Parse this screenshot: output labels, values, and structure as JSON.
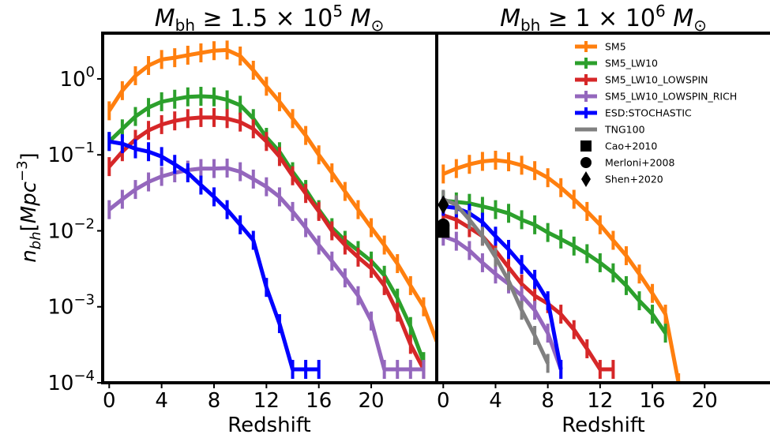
{
  "chart_data": {
    "type": "line",
    "ylabel": "n_bh[Mpc^-3]",
    "yscale": "log",
    "ylim": [
      0.0001,
      4
    ],
    "y_ticks": [
      {
        "value": 0.0001,
        "exp": "-4"
      },
      {
        "value": 0.001,
        "exp": "-3"
      },
      {
        "value": 0.01,
        "exp": "-2"
      },
      {
        "value": 0.1,
        "exp": "-1"
      },
      {
        "value": 1,
        "exp": "0"
      }
    ],
    "y_tick_base": "10",
    "legend": {
      "placement": "upper right",
      "entries": [
        {
          "label": "SM5",
          "color": "#ff7f0e",
          "marker": "line"
        },
        {
          "label": "SM5_LW10",
          "color": "#2ca02c",
          "marker": "line"
        },
        {
          "label": "SM5_LW10_LOWSPIN",
          "color": "#d62728",
          "marker": "line"
        },
        {
          "label": "SM5_LW10_LOWSPIN_RICH",
          "color": "#9467bd",
          "marker": "line"
        },
        {
          "label": "ESD:STOCHASTIC",
          "color": "#0000ff",
          "marker": "line"
        },
        {
          "label": "TNG100",
          "color": "#808080",
          "marker": "line"
        },
        {
          "label": "Cao+2010",
          "color": "#000000",
          "marker": "square"
        },
        {
          "label": "Merloni+2008",
          "color": "#000000",
          "marker": "circle"
        },
        {
          "label": "Shen+2020",
          "color": "#000000",
          "marker": "diamond"
        }
      ]
    },
    "panels": [
      {
        "title_main": "M",
        "title_sub": "bh",
        "title_mid": " ≥ 1.5 × 10",
        "title_exp": "5",
        "title_end": " M",
        "title_end_sub": "⊙",
        "xlabel": "Redshift",
        "xlim": [
          -0.5,
          25
        ],
        "x_ticks": [
          0,
          4,
          8,
          12,
          16,
          20
        ],
        "series": [
          {
            "color": "#ff7f0e",
            "x": [
              0,
              1,
              2,
              3,
              4,
              5,
              6,
              7,
              8,
              9,
              10,
              11,
              12,
              13,
              14,
              15,
              16,
              17,
              18,
              19,
              20,
              21,
              22,
              23,
              24,
              25
            ],
            "y": [
              0.38,
              0.7,
              1.1,
              1.5,
              1.8,
              1.9,
              2.05,
              2.2,
              2.35,
              2.4,
              2.0,
              1.3,
              0.8,
              0.5,
              0.3,
              0.18,
              0.1,
              0.058,
              0.033,
              0.019,
              0.011,
              0.0065,
              0.0037,
              0.0019,
              0.001,
              0.00035
            ]
          },
          {
            "color": "#2ca02c",
            "x": [
              0,
              1,
              2,
              3,
              4,
              5,
              6,
              7,
              8,
              9,
              10,
              11,
              12,
              13,
              14,
              15,
              16,
              17,
              18,
              19,
              20,
              21,
              22,
              23,
              24
            ],
            "y": [
              0.15,
              0.22,
              0.32,
              0.42,
              0.5,
              0.54,
              0.58,
              0.59,
              0.58,
              0.53,
              0.45,
              0.3,
              0.17,
              0.11,
              0.06,
              0.035,
              0.019,
              0.011,
              0.0075,
              0.0055,
              0.004,
              0.0026,
              0.0013,
              0.00055,
              0.00019
            ]
          },
          {
            "color": "#d62728",
            "x": [
              0,
              1,
              2,
              3,
              4,
              5,
              6,
              7,
              8,
              9,
              10,
              11,
              12,
              13,
              14,
              15,
              16,
              17,
              18,
              19,
              20,
              21,
              22,
              23,
              24
            ],
            "y": [
              0.07,
              0.11,
              0.16,
              0.21,
              0.25,
              0.28,
              0.3,
              0.31,
              0.31,
              0.3,
              0.27,
              0.22,
              0.15,
              0.095,
              0.053,
              0.031,
              0.018,
              0.01,
              0.0065,
              0.0045,
              0.0032,
              0.0019,
              0.00085,
              0.00032,
              0.00015
            ]
          },
          {
            "color": "#9467bd",
            "x": [
              0,
              1,
              2,
              3,
              4,
              5,
              6,
              7,
              8,
              9,
              10,
              11,
              12,
              13,
              14,
              15,
              16,
              17,
              18,
              19,
              20,
              21,
              22,
              23,
              24
            ],
            "y": [
              0.019,
              0.026,
              0.035,
              0.044,
              0.052,
              0.058,
              0.063,
              0.066,
              0.066,
              0.067,
              0.06,
              0.048,
              0.038,
              0.028,
              0.018,
              0.011,
              0.0065,
              0.004,
              0.0024,
              0.0014,
              0.00065,
              0.00015,
              0.00015,
              0.00015,
              0.00015
            ]
          },
          {
            "color": "#0000ff",
            "x": [
              0,
              1,
              2,
              3,
              4,
              5,
              6,
              7,
              8,
              9,
              10,
              11,
              12,
              13,
              14,
              15,
              16
            ],
            "y": [
              0.15,
              0.14,
              0.12,
              0.11,
              0.095,
              0.075,
              0.058,
              0.04,
              0.028,
              0.019,
              0.012,
              0.0075,
              0.0018,
              0.0006,
              0.00015,
              0.00015,
              0.00015
            ]
          }
        ]
      },
      {
        "title_main": "M",
        "title_sub": "bh",
        "title_mid": " ≥ 1 × 10",
        "title_exp": "6",
        "title_end": " M",
        "title_end_sub": "⊙",
        "xlabel": "Redshift",
        "xlim": [
          -0.5,
          25
        ],
        "x_ticks": [
          0,
          4,
          8,
          12,
          16,
          20
        ],
        "series": [
          {
            "color": "#ff7f0e",
            "x": [
              0,
              1,
              2,
              3,
              4,
              5,
              6,
              7,
              8,
              9,
              10,
              11,
              12,
              13,
              14,
              15,
              16,
              17,
              18
            ],
            "y": [
              0.056,
              0.066,
              0.075,
              0.082,
              0.085,
              0.081,
              0.073,
              0.062,
              0.05,
              0.037,
              0.026,
              0.018,
              0.012,
              0.0075,
              0.0047,
              0.0027,
              0.0015,
              0.0008,
              0.0001
            ]
          },
          {
            "color": "#2ca02c",
            "x": [
              0,
              1,
              2,
              3,
              4,
              5,
              6,
              7,
              8,
              9,
              10,
              11,
              12,
              13,
              14,
              15,
              16,
              17
            ],
            "y": [
              0.025,
              0.024,
              0.023,
              0.021,
              0.019,
              0.017,
              0.014,
              0.012,
              0.0095,
              0.0078,
              0.0063,
              0.005,
              0.0038,
              0.0028,
              0.0019,
              0.0012,
              0.0008,
              0.00045
            ]
          },
          {
            "color": "#d62728",
            "x": [
              0,
              1,
              2,
              3,
              4,
              5,
              6,
              7,
              8,
              9,
              10,
              11,
              12,
              13
            ],
            "y": [
              0.016,
              0.014,
              0.011,
              0.0085,
              0.0055,
              0.0033,
              0.002,
              0.0014,
              0.0011,
              0.0008,
              0.0005,
              0.00028,
              0.00015,
              0.00015
            ]
          },
          {
            "color": "#9467bd",
            "x": [
              0,
              1,
              2,
              3,
              4,
              5,
              6,
              7,
              8,
              9
            ],
            "y": [
              0.0085,
              0.0073,
              0.0055,
              0.0038,
              0.0027,
              0.002,
              0.0014,
              0.0009,
              0.00045,
              0.00015
            ]
          },
          {
            "color": "#0000ff",
            "x": [
              0,
              1,
              2,
              3,
              4,
              5,
              6,
              7,
              8,
              9
            ],
            "y": [
              0.021,
              0.02,
              0.017,
              0.013,
              0.0085,
              0.0057,
              0.0036,
              0.0023,
              0.0012,
              0.00015
            ]
          },
          {
            "color": "#808080",
            "x": [
              0,
              1,
              2,
              3,
              4,
              5,
              6,
              7,
              8
            ],
            "y": [
              0.026,
              0.022,
              0.014,
              0.0085,
              0.0045,
              0.0022,
              0.0009,
              0.00042,
              0.00018
            ]
          }
        ],
        "markers": [
          {
            "type": "diamond",
            "x": 0,
            "y": 0.022
          },
          {
            "type": "circle",
            "x": 0,
            "y": 0.012
          },
          {
            "type": "square",
            "x": 0,
            "y": 0.0098
          }
        ]
      }
    ]
  }
}
